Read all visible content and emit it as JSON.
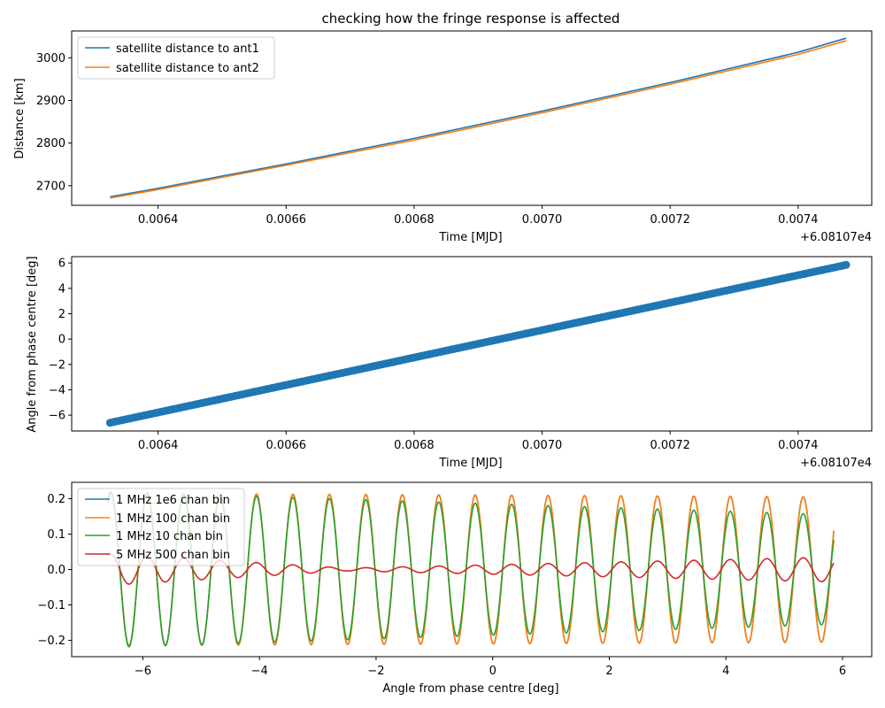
{
  "chart_data": [
    {
      "type": "line",
      "title": "checking how the fringe response is affected",
      "xlabel": "Time [MJD]",
      "ylabel": "Distance [km]",
      "x_offset_label": "+6.08107e4",
      "xlim": [
        0.006265,
        0.007515
      ],
      "ylim": [
        2654,
        3063
      ],
      "xticks": [
        0.0064,
        0.0066,
        0.0068,
        0.007,
        0.0072,
        0.0074
      ],
      "xtick_labels": [
        "0.0064",
        "0.0066",
        "0.0068",
        "0.0070",
        "0.0072",
        "0.0074"
      ],
      "yticks": [
        2700,
        2800,
        2900,
        3000
      ],
      "ytick_labels": [
        "2700",
        "2800",
        "2900",
        "3000"
      ],
      "legend": "upper left",
      "x": [
        0.006325,
        0.0064,
        0.0066,
        0.0068,
        0.007,
        0.0072,
        0.0074,
        0.007475
      ],
      "series": [
        {
          "name": "satellite distance to ant1",
          "color": "#1f77b4",
          "values": [
            2674,
            2694,
            2751,
            2811,
            2875,
            2942,
            3013,
            3046
          ]
        },
        {
          "name": "satellite distance to ant2",
          "color": "#ff7f0e",
          "values": [
            2671,
            2691,
            2748,
            2807,
            2871,
            2938,
            3008,
            3040
          ]
        }
      ]
    },
    {
      "type": "scatter",
      "xlabel": "Time [MJD]",
      "ylabel": "Angle from phase centre [deg]",
      "x_offset_label": "+6.08107e4",
      "xlim": [
        0.006265,
        0.007515
      ],
      "ylim": [
        -7.25,
        6.5
      ],
      "xticks": [
        0.0064,
        0.0066,
        0.0068,
        0.007,
        0.0072,
        0.0074
      ],
      "xtick_labels": [
        "0.0064",
        "0.0066",
        "0.0068",
        "0.0070",
        "0.0072",
        "0.0074"
      ],
      "yticks": [
        -6,
        -4,
        -2,
        0,
        2,
        4,
        6
      ],
      "ytick_labels": [
        "−6",
        "−4",
        "−2",
        "0",
        "2",
        "4",
        "6"
      ],
      "series": [
        {
          "color": "#1f77b4",
          "x_range": [
            0.006325,
            0.007475
          ],
          "y_range": [
            -6.6,
            5.85
          ]
        }
      ]
    },
    {
      "type": "line",
      "xlabel": "Angle from phase centre [deg]",
      "ylabel": "",
      "xlim": [
        -7.22,
        6.5
      ],
      "ylim": [
        -0.246,
        0.246
      ],
      "xticks": [
        -6,
        -4,
        -2,
        0,
        2,
        4,
        6
      ],
      "xtick_labels": [
        "−6",
        "−4",
        "−2",
        "0",
        "2",
        "4",
        "6"
      ],
      "yticks": [
        -0.2,
        -0.1,
        0.0,
        0.1,
        0.2
      ],
      "ytick_labels": [
        "−0.2",
        "−0.1",
        "0.0",
        "0.1",
        "0.2"
      ],
      "legend": "upper left",
      "x_range": [
        -6.6,
        5.85
      ],
      "fringe_period_deg": 0.625,
      "series": [
        {
          "name": "1 MHz 1e6 chan bin",
          "color": "#1f77b4",
          "amplitude_start": 0.215,
          "amplitude_end": 0.205
        },
        {
          "name": "1 MHz 100 chan bin",
          "color": "#ff7f0e",
          "amplitude_start": 0.215,
          "amplitude_end": 0.205
        },
        {
          "name": "1 MHz 10 chan bin",
          "color": "#2ca02c",
          "amplitude_start": 0.22,
          "amplitude_end": 0.155
        },
        {
          "name": "5 MHz 500 chan bin",
          "color": "#d62728",
          "amplitude_start": 0.045,
          "amplitude_end": 0.035,
          "amplitude_min": 0.004,
          "min_at": -2.5
        }
      ]
    }
  ]
}
